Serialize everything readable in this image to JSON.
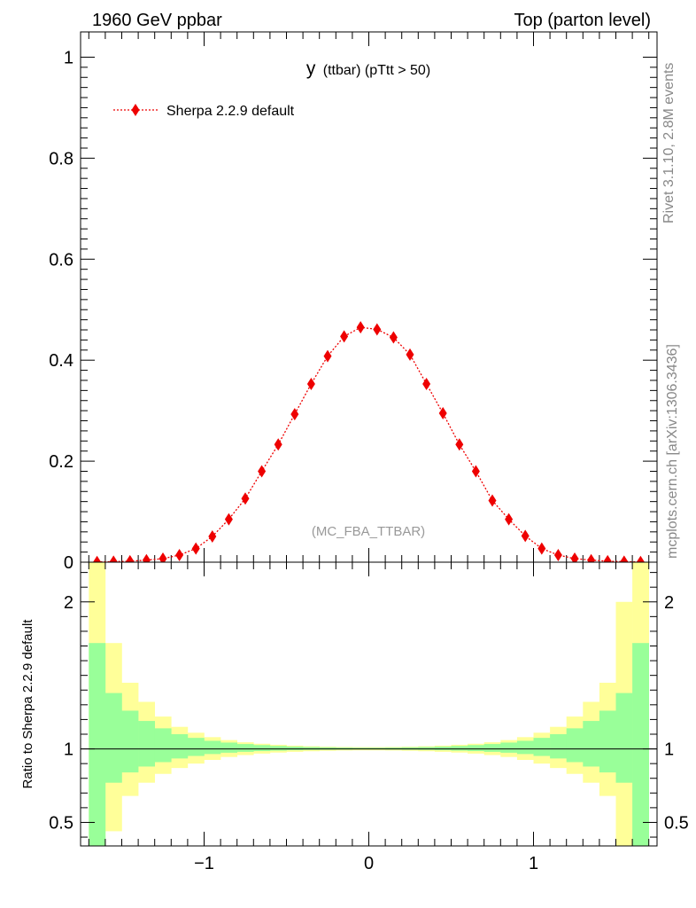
{
  "header": {
    "left": "1960 GeV ppbar",
    "right": "Top (parton level)"
  },
  "side_text": {
    "rivet": "Rivet 3.1.10,  2.8M events",
    "source": "mcplots.cern.ch [arXiv:1306.3436]"
  },
  "colors": {
    "series": "#ee0000",
    "band_inner": "#99ff99",
    "band_outer": "#ffff99",
    "axis": "#000000",
    "watermark": "#999999"
  },
  "chart_data": [
    {
      "type": "line",
      "title_main": "y",
      "title_sub": "(ttbar) (pTtt > 50)",
      "watermark": "(MC_FBA_TTBAR)",
      "legend_placement": "top-left",
      "xlim": [
        -1.75,
        1.75
      ],
      "ylim": [
        0,
        1.05
      ],
      "y_ticks": [
        0,
        0.2,
        0.4,
        0.6,
        0.8,
        1
      ],
      "y_tick_labels": [
        "0",
        "0.2",
        "0.4",
        "0.6",
        "0.8",
        "1"
      ],
      "x": [
        -1.65,
        -1.55,
        -1.45,
        -1.35,
        -1.25,
        -1.15,
        -1.05,
        -0.95,
        -0.85,
        -0.75,
        -0.65,
        -0.55,
        -0.45,
        -0.35,
        -0.25,
        -0.15,
        -0.05,
        0.05,
        0.15,
        0.25,
        0.35,
        0.45,
        0.55,
        0.65,
        0.75,
        0.85,
        0.95,
        1.05,
        1.15,
        1.25,
        1.35,
        1.45,
        1.55,
        1.65
      ],
      "series": [
        {
          "name": "Sherpa 2.2.9 default",
          "values": [
            0.0005,
            0.001,
            0.002,
            0.004,
            0.007,
            0.014,
            0.027,
            0.051,
            0.085,
            0.126,
            0.18,
            0.233,
            0.293,
            0.353,
            0.408,
            0.447,
            0.465,
            0.461,
            0.445,
            0.411,
            0.353,
            0.295,
            0.233,
            0.18,
            0.122,
            0.085,
            0.052,
            0.027,
            0.014,
            0.007,
            0.004,
            0.002,
            0.001,
            0.0005
          ]
        }
      ]
    },
    {
      "type": "area",
      "ylabel": "Ratio to Sherpa 2.2.9 default",
      "ylim": [
        0.34,
        2.27
      ],
      "y_ticks": [
        0.5,
        1,
        2
      ],
      "y_tick_labels": [
        "0.5",
        "1",
        "2"
      ],
      "xlim": [
        -1.75,
        1.75
      ],
      "x_ticks": [
        -1,
        0,
        1
      ],
      "x_tick_labels": [
        "−1",
        "0",
        "1"
      ],
      "bin_edges": [
        -1.7,
        -1.6,
        -1.5,
        -1.4,
        -1.3,
        -1.2,
        -1.1,
        -1.0,
        -0.9,
        -0.8,
        -0.7,
        -0.6,
        -0.5,
        -0.4,
        -0.3,
        -0.2,
        -0.1,
        0.0,
        0.1,
        0.2,
        0.3,
        0.4,
        0.5,
        0.6,
        0.7,
        0.8,
        0.9,
        1.0,
        1.1,
        1.2,
        1.3,
        1.4,
        1.5,
        1.6,
        1.7
      ],
      "outer_band": {
        "upper": [
          2.5,
          1.72,
          1.45,
          1.32,
          1.22,
          1.15,
          1.11,
          1.08,
          1.06,
          1.045,
          1.035,
          1.028,
          1.022,
          1.018,
          1.015,
          1.013,
          1.012,
          1.012,
          1.013,
          1.015,
          1.018,
          1.022,
          1.028,
          1.035,
          1.045,
          1.06,
          1.08,
          1.11,
          1.15,
          1.22,
          1.32,
          1.45,
          2.0,
          2.5
        ],
        "lower": [
          0.3,
          0.44,
          0.68,
          0.77,
          0.83,
          0.87,
          0.9,
          0.925,
          0.945,
          0.958,
          0.968,
          0.975,
          0.98,
          0.984,
          0.987,
          0.989,
          0.99,
          0.99,
          0.989,
          0.987,
          0.984,
          0.98,
          0.975,
          0.968,
          0.958,
          0.945,
          0.925,
          0.9,
          0.87,
          0.83,
          0.77,
          0.68,
          0.3,
          0.3
        ]
      },
      "inner_band": {
        "upper": [
          1.72,
          1.38,
          1.26,
          1.19,
          1.14,
          1.1,
          1.075,
          1.055,
          1.043,
          1.033,
          1.026,
          1.02,
          1.016,
          1.013,
          1.011,
          1.009,
          1.008,
          1.008,
          1.009,
          1.011,
          1.013,
          1.016,
          1.02,
          1.026,
          1.033,
          1.043,
          1.055,
          1.075,
          1.1,
          1.14,
          1.19,
          1.26,
          1.38,
          1.72
        ],
        "lower": [
          0.3,
          0.77,
          0.84,
          0.88,
          0.91,
          0.935,
          0.952,
          0.965,
          0.974,
          0.98,
          0.985,
          0.988,
          0.991,
          0.993,
          0.994,
          0.995,
          0.996,
          0.996,
          0.995,
          0.994,
          0.993,
          0.991,
          0.988,
          0.985,
          0.98,
          0.974,
          0.965,
          0.952,
          0.935,
          0.91,
          0.88,
          0.84,
          0.77,
          0.3
        ]
      },
      "reference_line": 1
    }
  ]
}
